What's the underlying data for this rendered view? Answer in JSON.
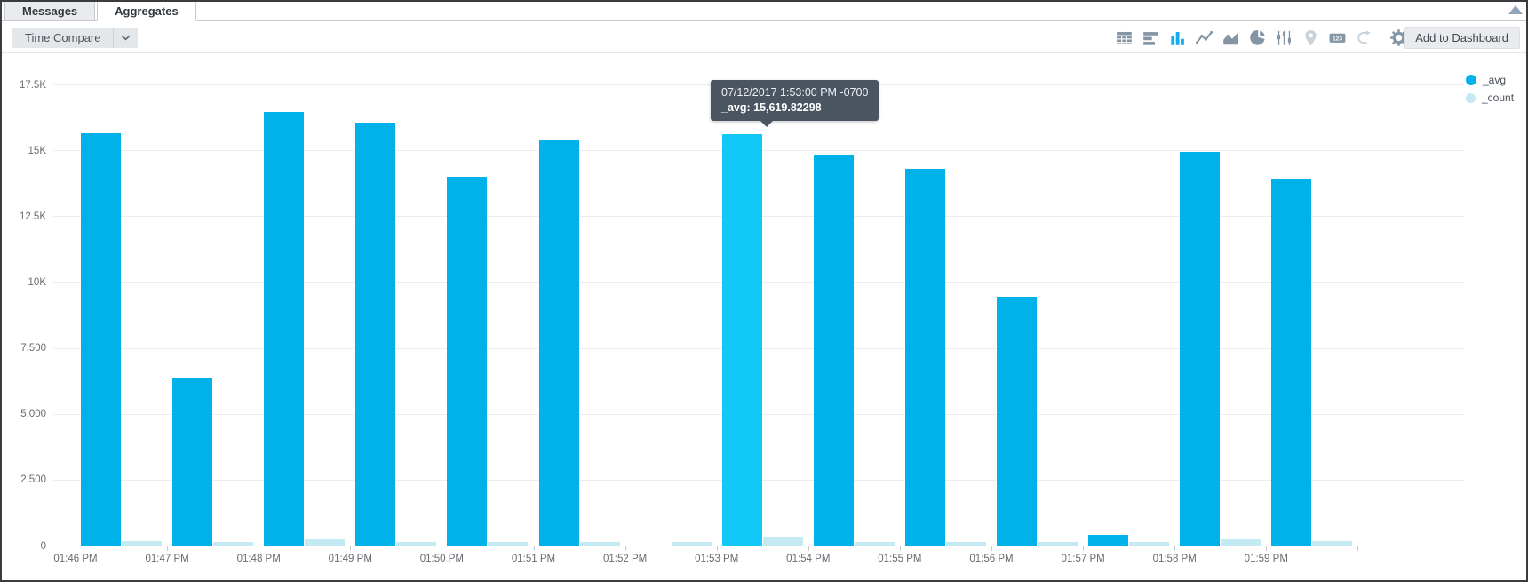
{
  "tabs": [
    {
      "label": "Messages",
      "active": false
    },
    {
      "label": "Aggregates",
      "active": true
    }
  ],
  "toolbar": {
    "time_compare_label": "Time Compare",
    "add_to_dashboard_label": "Add to Dashboard",
    "icons": [
      {
        "name": "table-icon",
        "state": "normal"
      },
      {
        "name": "bar-chart-icon",
        "state": "normal"
      },
      {
        "name": "column-chart-icon",
        "state": "active"
      },
      {
        "name": "line-chart-icon",
        "state": "normal"
      },
      {
        "name": "area-chart-icon",
        "state": "normal"
      },
      {
        "name": "pie-chart-icon",
        "state": "normal"
      },
      {
        "name": "box-plot-icon",
        "state": "normal"
      },
      {
        "name": "map-pin-icon",
        "state": "disabled"
      },
      {
        "name": "single-value-icon",
        "state": "normal"
      },
      {
        "name": "transpose-icon",
        "state": "disabled"
      },
      {
        "name": "settings-icon",
        "state": "normal"
      }
    ]
  },
  "scrollbar": {
    "up_arrow": "scroll-up-arrow"
  },
  "legend": [
    {
      "label": "_avg",
      "color": "#00b1ea"
    },
    {
      "label": "_count",
      "color": "#c3eaf3"
    }
  ],
  "tooltip": {
    "timestamp": "07/12/2017 1:53:00 PM -0700",
    "metric_label": "_avg:",
    "metric_value": "15,619.82298"
  },
  "chart_data": {
    "type": "bar",
    "title": "",
    "xlabel": "",
    "ylabel": "",
    "categories": [
      "01:46 PM",
      "01:47 PM",
      "01:48 PM",
      "01:49 PM",
      "01:50 PM",
      "01:51 PM",
      "01:52 PM",
      "01:53 PM",
      "01:54 PM",
      "01:55 PM",
      "01:56 PM",
      "01:57 PM",
      "01:58 PM",
      "01:59 PM"
    ],
    "series": [
      {
        "name": "_avg",
        "color": "#00b1ea",
        "highlight_color": "#12c8f8",
        "values": [
          15640,
          6380,
          16450,
          16050,
          13980,
          15370,
          null,
          15619.82298,
          14830,
          14300,
          9430,
          400,
          14950,
          13880
        ]
      },
      {
        "name": "_count",
        "color": "#c3eaf3",
        "values": [
          160,
          120,
          230,
          140,
          130,
          140,
          120,
          340,
          130,
          140,
          120,
          150,
          240,
          160
        ]
      }
    ],
    "highlight_index": 7,
    "ylim": [
      0,
      17500
    ],
    "y_ticks": [
      "17.5K",
      "15K",
      "12.5K",
      "10K",
      "7,500",
      "5,000",
      "2,500",
      "0"
    ],
    "y_tick_values": [
      17500,
      15000,
      12500,
      10000,
      7500,
      5000,
      2500,
      0
    ],
    "grid": "horizontal-only",
    "legend_position": "top-right"
  }
}
